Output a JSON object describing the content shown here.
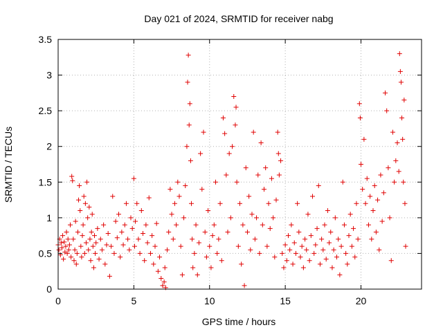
{
  "chart_data": {
    "type": "scatter",
    "title": "Day 021 of 2024, SRMTID for receiver nabg",
    "xlabel": "GPS time / hours",
    "ylabel": "SRMTID / TECUs",
    "xlim": [
      0,
      24
    ],
    "ylim": [
      0,
      3.5
    ],
    "xticks": [
      0,
      5,
      10,
      15,
      20
    ],
    "xtick_labels": [
      "0",
      "5",
      "10",
      "15",
      "20"
    ],
    "yticks": [
      0,
      0.5,
      1,
      1.5,
      2,
      2.5,
      3,
      3.5
    ],
    "ytick_labels": [
      "0",
      "0.5",
      "1",
      "1.5",
      "2",
      "2.5",
      "3",
      "3.5"
    ],
    "grid": true,
    "marker": "plus",
    "color": "#e00000",
    "series": [
      {
        "name": "SRMTID",
        "points": [
          [
            0.0,
            0.62
          ],
          [
            0.05,
            0.55
          ],
          [
            0.1,
            0.7
          ],
          [
            0.15,
            0.48
          ],
          [
            0.2,
            0.65
          ],
          [
            0.25,
            0.58
          ],
          [
            0.3,
            0.75
          ],
          [
            0.35,
            0.42
          ],
          [
            0.4,
            0.66
          ],
          [
            0.45,
            0.52
          ],
          [
            0.5,
            0.6
          ],
          [
            0.55,
            0.8
          ],
          [
            0.6,
            0.5
          ],
          [
            0.65,
            0.7
          ],
          [
            0.7,
            0.55
          ],
          [
            0.75,
            0.62
          ],
          [
            0.8,
            0.9
          ],
          [
            0.85,
            0.45
          ],
          [
            0.9,
            1.58
          ],
          [
            0.95,
            1.52
          ],
          [
            1.0,
            0.7
          ],
          [
            1.05,
            0.4
          ],
          [
            1.1,
            0.55
          ],
          [
            1.15,
            0.95
          ],
          [
            1.2,
            0.35
          ],
          [
            1.25,
            0.5
          ],
          [
            1.3,
            0.8
          ],
          [
            1.35,
            1.25
          ],
          [
            1.4,
            1.45
          ],
          [
            1.45,
            1.1
          ],
          [
            1.5,
            0.6
          ],
          [
            1.55,
            0.45
          ],
          [
            1.6,
            0.75
          ],
          [
            1.65,
            0.9
          ],
          [
            1.7,
            1.3
          ],
          [
            1.75,
            0.5
          ],
          [
            1.8,
            1.2
          ],
          [
            1.85,
            0.65
          ],
          [
            1.9,
            1.5
          ],
          [
            1.95,
            1.0
          ],
          [
            2.0,
            0.55
          ],
          [
            2.05,
            1.15
          ],
          [
            2.1,
            0.7
          ],
          [
            2.15,
            0.4
          ],
          [
            2.2,
            0.8
          ],
          [
            2.25,
            1.05
          ],
          [
            2.3,
            0.6
          ],
          [
            2.35,
            0.3
          ],
          [
            2.4,
            0.75
          ],
          [
            2.45,
            0.5
          ],
          [
            2.5,
            0.65
          ],
          [
            2.6,
            0.85
          ],
          [
            2.7,
            0.42
          ],
          [
            2.8,
            0.7
          ],
          [
            2.9,
            0.55
          ],
          [
            3.0,
            0.9
          ],
          [
            3.1,
            0.35
          ],
          [
            3.2,
            0.62
          ],
          [
            3.3,
            0.78
          ],
          [
            3.4,
            0.18
          ],
          [
            3.5,
            0.6
          ],
          [
            3.6,
            1.3
          ],
          [
            3.7,
            0.5
          ],
          [
            3.8,
            0.95
          ],
          [
            3.9,
            0.72
          ],
          [
            4.0,
            1.05
          ],
          [
            4.1,
            0.45
          ],
          [
            4.2,
            0.8
          ],
          [
            4.3,
            0.62
          ],
          [
            4.4,
            0.9
          ],
          [
            4.5,
            1.2
          ],
          [
            4.6,
            0.7
          ],
          [
            4.7,
            0.55
          ],
          [
            4.8,
            1.0
          ],
          [
            4.9,
            0.85
          ],
          [
            5.0,
            1.55
          ],
          [
            5.05,
            0.6
          ],
          [
            5.1,
            0.95
          ],
          [
            5.2,
            1.2
          ],
          [
            5.3,
            0.7
          ],
          [
            5.4,
            0.5
          ],
          [
            5.5,
            1.1
          ],
          [
            5.6,
            0.78
          ],
          [
            5.7,
            0.4
          ],
          [
            5.8,
            0.9
          ],
          [
            5.9,
            0.65
          ],
          [
            6.0,
            1.28
          ],
          [
            6.1,
            0.5
          ],
          [
            6.2,
            0.75
          ],
          [
            6.3,
            0.35
          ],
          [
            6.4,
            0.6
          ],
          [
            6.5,
            0.92
          ],
          [
            6.6,
            0.25
          ],
          [
            6.7,
            0.45
          ],
          [
            6.8,
            0.15
          ],
          [
            6.9,
            0.05
          ],
          [
            7.0,
            0.1
          ],
          [
            7.05,
            0.3
          ],
          [
            7.1,
            0.02
          ],
          [
            7.2,
            0.55
          ],
          [
            7.3,
            0.8
          ],
          [
            7.4,
            1.4
          ],
          [
            7.5,
            1.05
          ],
          [
            7.6,
            0.7
          ],
          [
            7.7,
            1.2
          ],
          [
            7.8,
            0.9
          ],
          [
            7.9,
            1.5
          ],
          [
            8.0,
            1.3
          ],
          [
            8.1,
            0.6
          ],
          [
            8.2,
            0.2
          ],
          [
            8.3,
            1.0
          ],
          [
            8.4,
            1.45
          ],
          [
            8.5,
            2.0
          ],
          [
            8.55,
            2.9
          ],
          [
            8.6,
            3.28
          ],
          [
            8.65,
            2.3
          ],
          [
            8.7,
            2.6
          ],
          [
            8.75,
            1.8
          ],
          [
            8.8,
            1.2
          ],
          [
            8.85,
            0.7
          ],
          [
            8.9,
            0.3
          ],
          [
            9.0,
            0.5
          ],
          [
            9.1,
            0.9
          ],
          [
            9.2,
            0.2
          ],
          [
            9.3,
            0.65
          ],
          [
            9.4,
            1.9
          ],
          [
            9.5,
            1.4
          ],
          [
            9.6,
            2.2
          ],
          [
            9.7,
            0.8
          ],
          [
            9.8,
            0.45
          ],
          [
            9.9,
            1.1
          ],
          [
            10.0,
            0.6
          ],
          [
            10.1,
            0.3
          ],
          [
            10.2,
            0.75
          ],
          [
            10.3,
            0.9
          ],
          [
            10.4,
            1.5
          ],
          [
            10.5,
            0.5
          ],
          [
            10.6,
            0.7
          ],
          [
            10.7,
            1.2
          ],
          [
            10.8,
            0.4
          ],
          [
            10.9,
            2.4
          ],
          [
            11.0,
            2.18
          ],
          [
            11.1,
            1.6
          ],
          [
            11.2,
            0.8
          ],
          [
            11.3,
            1.9
          ],
          [
            11.4,
            1.0
          ],
          [
            11.5,
            2.0
          ],
          [
            11.6,
            2.7
          ],
          [
            11.7,
            2.3
          ],
          [
            11.75,
            2.55
          ],
          [
            11.8,
            1.5
          ],
          [
            11.9,
            0.6
          ],
          [
            12.0,
            1.2
          ],
          [
            12.1,
            0.35
          ],
          [
            12.2,
            0.9
          ],
          [
            12.3,
            0.05
          ],
          [
            12.4,
            1.7
          ],
          [
            12.5,
            0.8
          ],
          [
            12.6,
            1.3
          ],
          [
            12.7,
            0.55
          ],
          [
            12.8,
            1.05
          ],
          [
            12.9,
            2.2
          ],
          [
            13.0,
            0.7
          ],
          [
            13.1,
            1.0
          ],
          [
            13.2,
            1.6
          ],
          [
            13.3,
            0.5
          ],
          [
            13.4,
            2.05
          ],
          [
            13.5,
            0.9
          ],
          [
            13.6,
            1.4
          ],
          [
            13.7,
            1.7
          ],
          [
            13.8,
            0.6
          ],
          [
            13.9,
            1.2
          ],
          [
            14.0,
            0.85
          ],
          [
            14.1,
            1.55
          ],
          [
            14.2,
            1.0
          ],
          [
            14.3,
            0.45
          ],
          [
            14.4,
            1.25
          ],
          [
            14.5,
            2.2
          ],
          [
            14.55,
            1.9
          ],
          [
            14.6,
            1.6
          ],
          [
            14.7,
            1.8
          ],
          [
            14.8,
            0.5
          ],
          [
            14.9,
            0.3
          ],
          [
            15.0,
            0.62
          ],
          [
            15.1,
            0.4
          ],
          [
            15.2,
            0.75
          ],
          [
            15.3,
            0.55
          ],
          [
            15.4,
            0.9
          ],
          [
            15.5,
            0.35
          ],
          [
            15.6,
            0.65
          ],
          [
            15.7,
            0.5
          ],
          [
            15.8,
            1.2
          ],
          [
            15.9,
            0.8
          ],
          [
            16.0,
            0.45
          ],
          [
            16.1,
            0.6
          ],
          [
            16.2,
            0.3
          ],
          [
            16.3,
            0.7
          ],
          [
            16.4,
            0.55
          ],
          [
            16.5,
            1.05
          ],
          [
            16.6,
            0.4
          ],
          [
            16.7,
            0.75
          ],
          [
            16.8,
            1.3
          ],
          [
            16.9,
            0.5
          ],
          [
            17.0,
            0.62
          ],
          [
            17.1,
            0.85
          ],
          [
            17.2,
            1.45
          ],
          [
            17.3,
            0.35
          ],
          [
            17.4,
            0.7
          ],
          [
            17.5,
            0.55
          ],
          [
            17.6,
            0.9
          ],
          [
            17.7,
            0.42
          ],
          [
            17.8,
            1.1
          ],
          [
            17.9,
            0.65
          ],
          [
            18.0,
            0.8
          ],
          [
            18.1,
            0.3
          ],
          [
            18.2,
            0.55
          ],
          [
            18.3,
            1.0
          ],
          [
            18.4,
            0.45
          ],
          [
            18.5,
            0.7
          ],
          [
            18.6,
            0.2
          ],
          [
            18.7,
            0.6
          ],
          [
            18.8,
            1.5
          ],
          [
            18.9,
            0.9
          ],
          [
            19.0,
            0.5
          ],
          [
            19.1,
            0.35
          ],
          [
            19.2,
            0.75
          ],
          [
            19.3,
            1.05
          ],
          [
            19.4,
            0.6
          ],
          [
            19.5,
            0.85
          ],
          [
            19.6,
            0.45
          ],
          [
            19.7,
            1.2
          ],
          [
            19.8,
            0.7
          ],
          [
            19.9,
            2.6
          ],
          [
            19.95,
            2.4
          ],
          [
            20.0,
            1.75
          ],
          [
            20.1,
            1.4
          ],
          [
            20.2,
            2.1
          ],
          [
            20.3,
            1.2
          ],
          [
            20.4,
            1.55
          ],
          [
            20.5,
            0.9
          ],
          [
            20.6,
            1.3
          ],
          [
            20.7,
            0.7
          ],
          [
            20.8,
            1.1
          ],
          [
            20.9,
            1.45
          ],
          [
            21.0,
            0.8
          ],
          [
            21.1,
            1.25
          ],
          [
            21.2,
            0.55
          ],
          [
            21.3,
            1.6
          ],
          [
            21.4,
            0.95
          ],
          [
            21.5,
            1.35
          ],
          [
            21.6,
            2.75
          ],
          [
            21.7,
            2.5
          ],
          [
            21.8,
            1.7
          ],
          [
            21.9,
            1.0
          ],
          [
            22.0,
            0.4
          ],
          [
            22.1,
            2.2
          ],
          [
            22.2,
            1.5
          ],
          [
            22.3,
            1.8
          ],
          [
            22.4,
            2.05
          ],
          [
            22.5,
            1.65
          ],
          [
            22.55,
            3.3
          ],
          [
            22.6,
            3.05
          ],
          [
            22.65,
            2.9
          ],
          [
            22.7,
            2.4
          ],
          [
            22.75,
            2.1
          ],
          [
            22.8,
            1.5
          ],
          [
            22.85,
            2.65
          ],
          [
            22.9,
            1.2
          ],
          [
            22.95,
            0.6
          ]
        ]
      }
    ]
  }
}
